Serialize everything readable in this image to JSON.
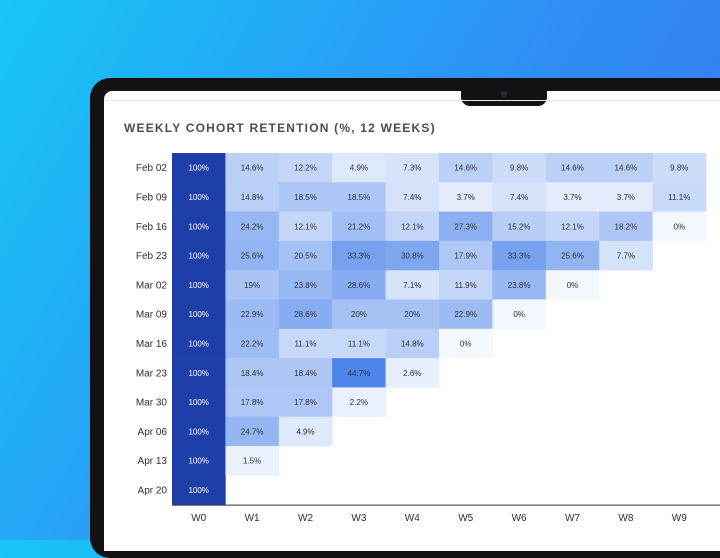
{
  "chart_data": {
    "type": "heatmap",
    "title": "WEEKLY COHORT RETENTION (%, 12 WEEKS)",
    "rows": [
      "Feb 02",
      "Feb 09",
      "Feb 16",
      "Feb 23",
      "Mar 02",
      "Mar 09",
      "Mar 16",
      "Mar 23",
      "Mar 30",
      "Apr 06",
      "Apr 13",
      "Apr 20"
    ],
    "columns": [
      "W0",
      "W1",
      "W2",
      "W3",
      "W4",
      "W5",
      "W6",
      "W7",
      "W8",
      "W9"
    ],
    "values": [
      [
        100,
        14.6,
        12.2,
        4.9,
        7.3,
        14.6,
        9.8,
        14.6,
        14.6,
        9.8
      ],
      [
        100,
        14.8,
        18.5,
        18.5,
        7.4,
        3.7,
        7.4,
        3.7,
        3.7,
        11.1
      ],
      [
        100,
        24.2,
        12.1,
        21.2,
        12.1,
        27.3,
        15.2,
        12.1,
        18.2,
        0
      ],
      [
        100,
        25.6,
        20.5,
        33.3,
        30.8,
        17.9,
        33.3,
        25.6,
        7.7
      ],
      [
        100,
        19,
        23.8,
        28.6,
        7.1,
        11.9,
        23.8,
        0
      ],
      [
        100,
        22.9,
        28.6,
        20,
        20,
        22.9,
        0
      ],
      [
        100,
        22.2,
        11.1,
        11.1,
        14.8,
        0
      ],
      [
        100,
        18.4,
        18.4,
        44.7,
        2.6
      ],
      [
        100,
        17.8,
        17.8,
        2.2
      ],
      [
        100,
        24.7,
        4.9
      ],
      [
        100,
        1.5
      ],
      [
        100
      ]
    ],
    "value_format": "{v}%",
    "colors": {
      "max": "#1f3fa8",
      "high": "#4d84ea",
      "low": "#f3f7fe",
      "label_dark": "#2c2f36",
      "label_light": "#ffffff"
    }
  }
}
